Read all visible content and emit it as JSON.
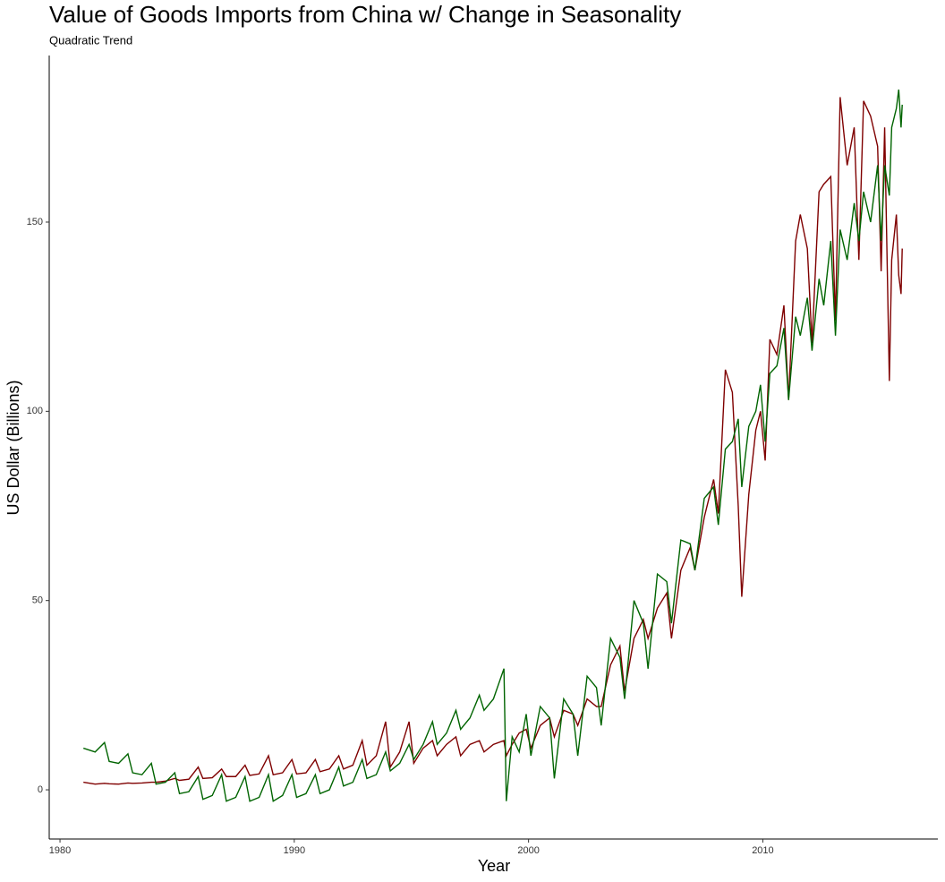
{
  "chart_data": {
    "type": "line",
    "title": "Value of Goods Imports from China w/ Change in Seasonality",
    "subtitle": "Quadratic Trend",
    "x_label": "Year",
    "y_label": "US Dollar (Billions)",
    "x": [
      1981.0,
      1981.5,
      1981.9,
      1982.1,
      1982.5,
      1982.9,
      1983.1,
      1983.5,
      1983.9,
      1984.1,
      1984.5,
      1984.9,
      1985.1,
      1985.5,
      1985.9,
      1986.1,
      1986.5,
      1986.9,
      1987.1,
      1987.5,
      1987.9,
      1988.1,
      1988.5,
      1988.9,
      1989.1,
      1989.5,
      1989.9,
      1990.1,
      1990.5,
      1990.9,
      1991.1,
      1991.5,
      1991.9,
      1992.1,
      1992.5,
      1992.9,
      1993.1,
      1993.5,
      1993.9,
      1994.1,
      1994.5,
      1994.9,
      1995.1,
      1995.5,
      1995.9,
      1996.1,
      1996.5,
      1996.9,
      1997.1,
      1997.5,
      1997.9,
      1998.1,
      1998.5,
      1998.95,
      1999.05,
      1999.3,
      1999.6,
      1999.9,
      2000.1,
      2000.5,
      2000.9,
      2001.1,
      2001.5,
      2001.9,
      2002.1,
      2002.5,
      2002.9,
      2003.1,
      2003.5,
      2003.9,
      2004.1,
      2004.5,
      2004.9,
      2005.1,
      2005.5,
      2005.9,
      2006.1,
      2006.5,
      2006.9,
      2007.1,
      2007.5,
      2007.9,
      2008.1,
      2008.4,
      2008.7,
      2008.95,
      2009.1,
      2009.4,
      2009.7,
      2009.9,
      2010.1,
      2010.3,
      2010.6,
      2010.9,
      2011.1,
      2011.4,
      2011.6,
      2011.9,
      2012.1,
      2012.4,
      2012.6,
      2012.9,
      2013.1,
      2013.3,
      2013.6,
      2013.9,
      2014.1,
      2014.3,
      2014.6,
      2014.9,
      2015.05,
      2015.2,
      2015.4,
      2015.5,
      2015.7,
      2015.8,
      2015.9,
      2015.95
    ],
    "series": [
      {
        "color": "#7f0000",
        "values": [
          2,
          1.5,
          1.7,
          1.6,
          1.5,
          1.8,
          1.7,
          1.8,
          2,
          2,
          2.3,
          3,
          2.5,
          2.8,
          6,
          3,
          3.2,
          5.5,
          3.5,
          3.5,
          6.5,
          3.8,
          4.2,
          9,
          4,
          4.5,
          8,
          4.2,
          4.5,
          8,
          4.8,
          5.5,
          9,
          5.5,
          6.5,
          13,
          6.5,
          9,
          18,
          6,
          10,
          18,
          7,
          11,
          13,
          9,
          12,
          14,
          9,
          12,
          13,
          10,
          12,
          13,
          9,
          12,
          15,
          16,
          11,
          17,
          19,
          14,
          21,
          20,
          17,
          24,
          22,
          22,
          33,
          38,
          26,
          40,
          45,
          40,
          48,
          52,
          40,
          58,
          64,
          58,
          72,
          82,
          73,
          111,
          105,
          75,
          51,
          78,
          95,
          100,
          87,
          119,
          115,
          128,
          103,
          145,
          152,
          143,
          118,
          158,
          160,
          162,
          124,
          183,
          165,
          175,
          140,
          182,
          178,
          170,
          137,
          175,
          108,
          140,
          152,
          136,
          131,
          143
        ]
      },
      {
        "color": "#006400",
        "values": [
          11,
          10,
          12.5,
          7.5,
          7,
          9.5,
          4.5,
          4,
          7,
          1.5,
          2,
          4.5,
          -1,
          -0.5,
          3.5,
          -2.5,
          -1.5,
          4,
          -3,
          -2,
          3.5,
          -3,
          -2,
          4,
          -3,
          -1.5,
          4,
          -2,
          -1,
          4,
          -1,
          0,
          6,
          1,
          2,
          8,
          3,
          4,
          10,
          5,
          7,
          12,
          8,
          12,
          18,
          12,
          15,
          21,
          16,
          19,
          25,
          21,
          24,
          32,
          -3,
          14,
          10,
          20,
          9,
          22,
          19,
          3,
          24,
          20,
          9,
          30,
          27,
          17,
          40,
          35,
          24,
          50,
          44,
          32,
          57,
          55,
          44,
          66,
          65,
          58,
          77,
          80,
          70,
          90,
          92,
          98,
          80,
          96,
          100,
          107,
          92,
          110,
          112,
          122,
          103,
          125,
          120,
          130,
          116,
          135,
          128,
          145,
          120,
          148,
          140,
          155,
          145,
          158,
          150,
          165,
          145,
          165,
          157,
          175,
          180,
          185,
          175,
          181
        ]
      }
    ],
    "xlim": [
      1979.54,
      2017.47
    ],
    "ylim": [
      -13,
      194
    ],
    "xticks": [
      1980,
      1990,
      2000,
      2010
    ],
    "yticks": [
      0,
      50,
      100,
      150
    ],
    "grid": false
  }
}
